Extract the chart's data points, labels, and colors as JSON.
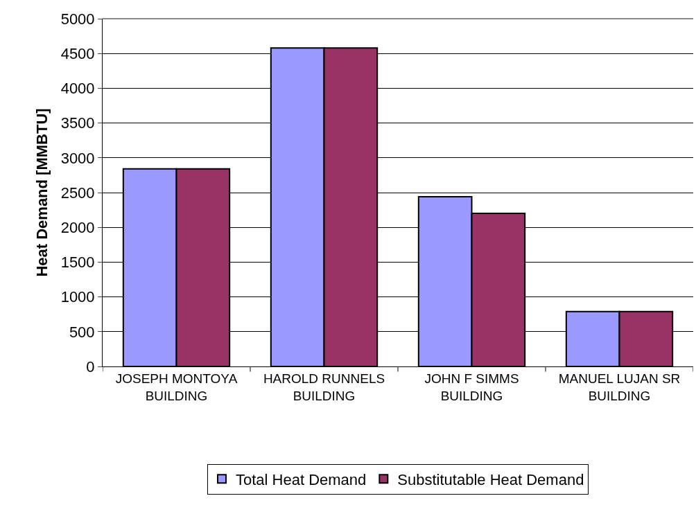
{
  "chart_data": {
    "type": "bar",
    "ylabel": "Heat Demand [MMBTU]",
    "categories": [
      "JOSEPH MONTOYA BUILDING",
      "HAROLD RUNNELS BUILDING",
      "JOHN F SIMMS BUILDING",
      "MANUEL LUJAN SR BUILDING"
    ],
    "series": [
      {
        "name": "Total Heat Demand",
        "color": "#9999ff",
        "values": [
          2840,
          4580,
          2440,
          790
        ]
      },
      {
        "name": "Substitutable Heat Demand",
        "color": "#993366",
        "values": [
          2840,
          4580,
          2200,
          790
        ]
      }
    ],
    "ylim": [
      0,
      5000
    ],
    "yticks": [
      0,
      500,
      1000,
      1500,
      2000,
      2500,
      3000,
      3500,
      4000,
      4500,
      5000
    ],
    "grid": "y",
    "legend": "bottom"
  }
}
